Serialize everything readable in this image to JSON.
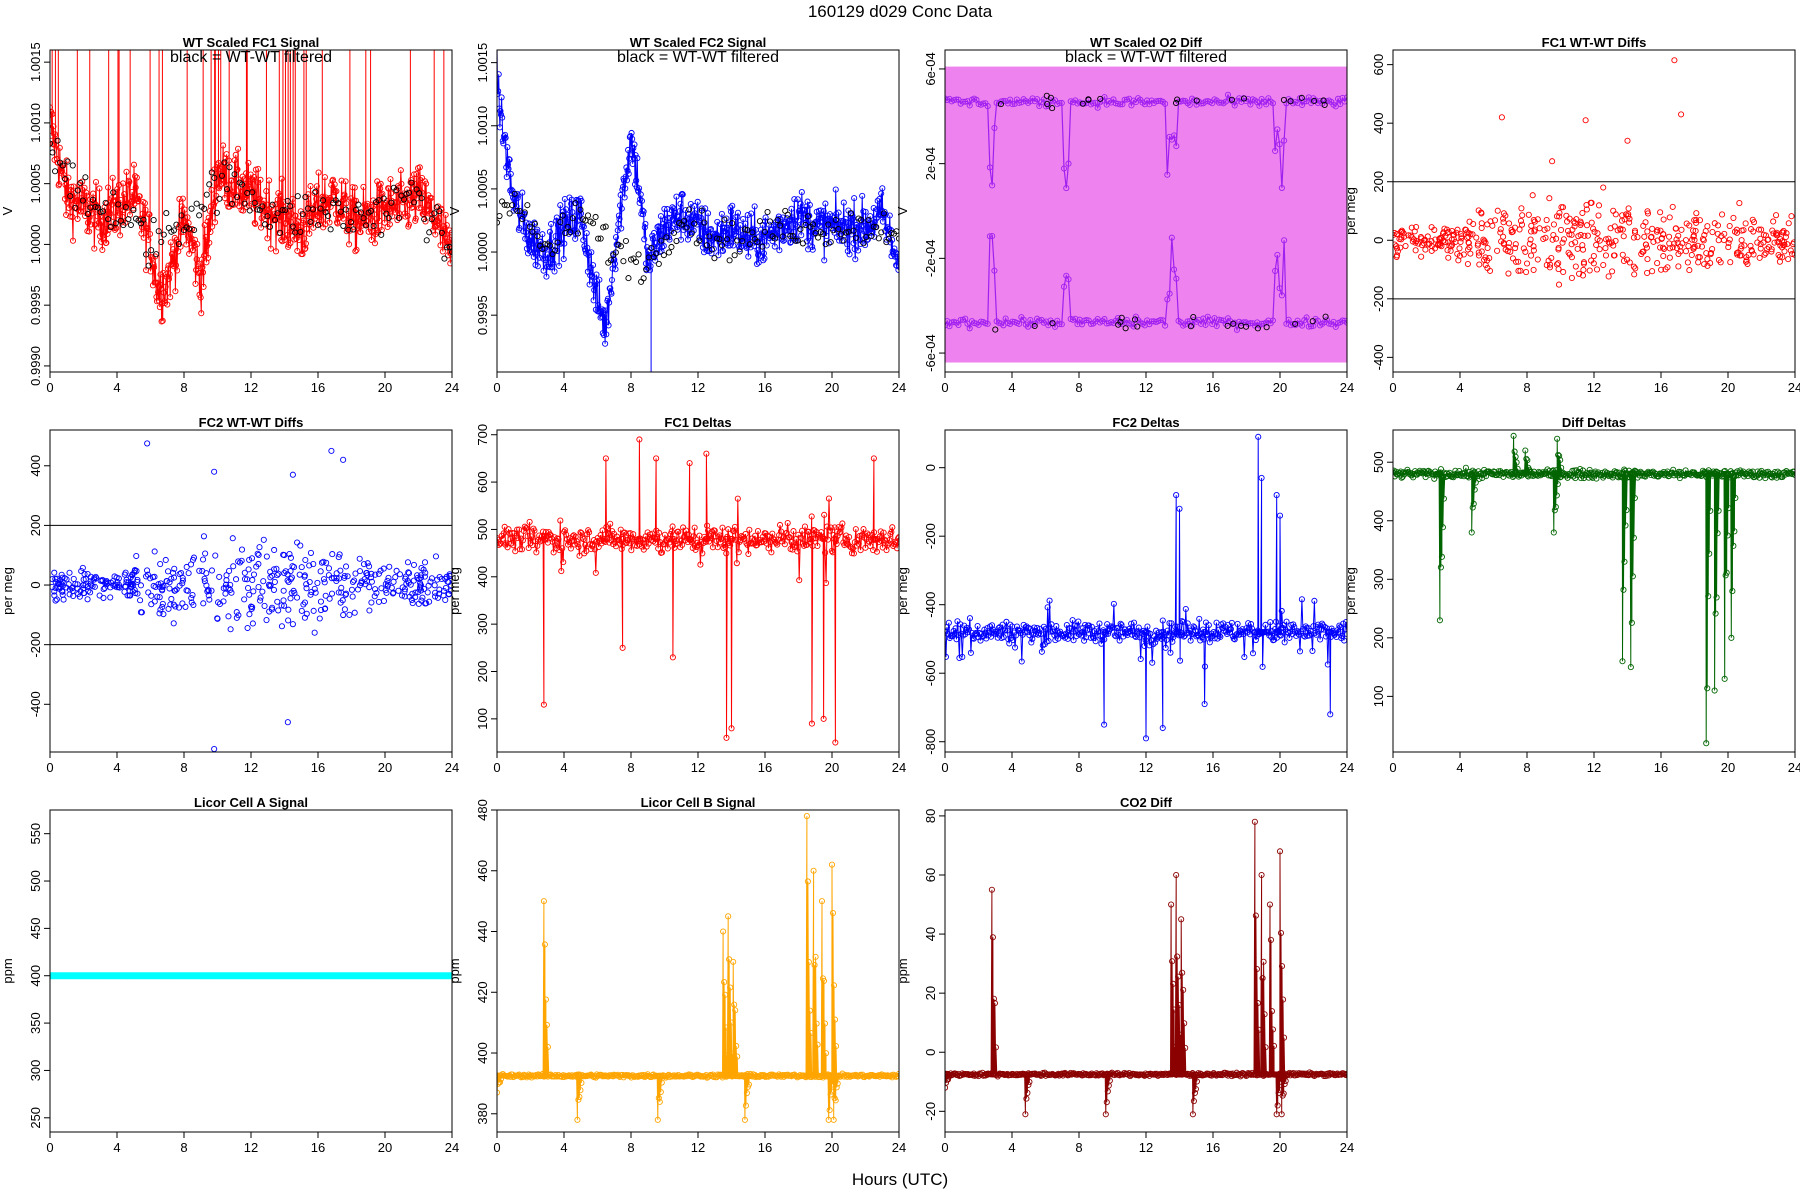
{
  "page": {
    "title": "160129   d029   Conc Data",
    "xlabel": "Hours (UTC)"
  },
  "chart_data": [
    {
      "id": "p1",
      "type": "line",
      "title": "WT Scaled FC1 Signal",
      "annotation": "black = WT-WT filtered",
      "ylabel": "V",
      "xlim": [
        0,
        24
      ],
      "ylim": [
        0.99895,
        1.0016
      ],
      "yticks": [
        0.999,
        0.9995,
        1.0,
        1.0005,
        1.001,
        1.0015
      ],
      "yticklabels": [
        "0.9990",
        "0.9995",
        "1.0000",
        "1.0005",
        "1.0010",
        "1.0015"
      ],
      "xticks": [
        0,
        4,
        8,
        12,
        16,
        20,
        24
      ],
      "series": [
        {
          "style": "line+points",
          "color": "#ff0000",
          "baseline": 1.0003,
          "x": [
            0,
            0.5,
            1,
            2,
            3,
            4,
            5,
            6,
            6.5,
            7,
            8,
            8.5,
            9,
            9.5,
            10,
            11,
            12,
            13,
            14,
            15,
            16,
            17,
            18,
            19,
            20,
            21,
            22,
            23,
            24
          ],
          "y": [
            1.001,
            1.0007,
            1.0004,
            1.0003,
            1.0002,
            1.0003,
            1.0004,
            1.0,
            0.9996,
            0.9997,
            1.0002,
            1.0,
            0.9997,
            1.0001,
            1.0006,
            1.0005,
            1.0004,
            1.0003,
            1.0002,
            1.0001,
            1.0003,
            1.0004,
            1.0002,
            1.0002,
            1.0003,
            1.0003,
            1.0004,
            1.0002,
            0.9999
          ],
          "noise": 0.00025,
          "spikes": true
        },
        {
          "style": "points",
          "color": "#000000",
          "baseline": 1.0003,
          "x": [
            0.5,
            2,
            4,
            6,
            8,
            10,
            12,
            14,
            16,
            18,
            20,
            22,
            23.5
          ],
          "y": [
            1.0008,
            1.0003,
            1.0003,
            1.0,
            1.0002,
            1.0005,
            1.0004,
            1.0002,
            1.0003,
            1.0002,
            1.0003,
            1.0004,
            1.0
          ],
          "noise": 0.0002
        }
      ]
    },
    {
      "id": "p2",
      "type": "line",
      "title": "WT Scaled FC2 Signal",
      "annotation": "black = WT-WT filtered",
      "ylabel": "V",
      "xlim": [
        0,
        24
      ],
      "ylim": [
        0.99905,
        1.0016
      ],
      "yticks": [
        0.9995,
        1.0,
        1.0005,
        1.001,
        1.0015
      ],
      "yticklabels": [
        "0.9995",
        "1.0000",
        "1.0005",
        "1.0010",
        "1.0015"
      ],
      "xticks": [
        0,
        4,
        8,
        12,
        16,
        20,
        24
      ],
      "series": [
        {
          "style": "line+points",
          "color": "#0000ff",
          "baseline": 1.0002,
          "x": [
            0,
            0.3,
            1,
            2,
            3,
            4,
            5,
            6,
            6.5,
            7,
            8,
            8.5,
            9,
            10,
            11,
            12,
            13,
            14,
            15,
            16,
            17,
            18,
            19,
            20,
            21,
            22,
            23,
            24
          ],
          "y": [
            1.0014,
            1.001,
            1.0004,
            1.0001,
            1.0,
            1.0002,
            1.0003,
            0.9996,
            0.9994,
            1.0,
            1.0009,
            1.0005,
            0.9999,
            1.0002,
            1.0003,
            1.0002,
            1.0001,
            1.0002,
            1.0001,
            1.0001,
            1.0002,
            1.0003,
            1.0002,
            1.0002,
            1.0002,
            1.0002,
            1.0003,
            0.9999
          ],
          "noise": 0.0002,
          "spikes": false
        },
        {
          "style": "points",
          "color": "#000000",
          "baseline": 1.0002,
          "x": [
            1,
            3,
            5,
            7,
            9,
            11,
            13,
            15,
            17,
            19,
            21,
            23
          ],
          "y": [
            1.0004,
            1.0,
            1.0003,
            1.0,
            0.9999,
            1.0003,
            1.0001,
            1.0001,
            1.0002,
            1.0002,
            1.0002,
            1.0002
          ],
          "noise": 0.00015
        }
      ]
    },
    {
      "id": "p3",
      "type": "line",
      "title": "WT Scaled O2 Diff",
      "annotation": "black = WT-WT filtered",
      "ylabel": "V",
      "xlim": [
        0,
        24
      ],
      "ylim": [
        -0.00068,
        0.00068
      ],
      "yticks": [
        -0.0006,
        -0.0002,
        0.0002,
        0.0006
      ],
      "yticklabels": [
        "-6e-04",
        "-2e-04",
        "2e-04",
        "6e-04"
      ],
      "xticks": [
        0,
        4,
        8,
        12,
        16,
        20,
        24
      ],
      "band": {
        "color": "#ee82ee",
        "from": -0.00064,
        "to": 0.00061,
        "x": [
          0,
          24
        ]
      },
      "levels": {
        "upper": 0.00046,
        "lower": -0.00047,
        "color": "#a020f0"
      }
    },
    {
      "id": "p4",
      "type": "scatter",
      "title": "FC1 WT-WT Diffs",
      "ylabel": "per meg",
      "xlim": [
        0,
        24
      ],
      "ylim": [
        -450,
        650
      ],
      "yticks": [
        -400,
        -200,
        0,
        200,
        400,
        600
      ],
      "yticklabels": [
        "-400",
        "-200",
        "0",
        "200",
        "400",
        "600"
      ],
      "xticks": [
        0,
        4,
        8,
        12,
        16,
        20,
        24
      ],
      "hlines": [
        200,
        -200
      ],
      "color": "#ff0000",
      "spread": {
        "start": 60,
        "peak": 150,
        "end": 70
      },
      "outliers": {
        "x": [
          6.5,
          11.5,
          16.8,
          17.2,
          9.5,
          14
        ],
        "y": [
          420,
          410,
          615,
          430,
          270,
          340
        ]
      }
    },
    {
      "id": "p5",
      "type": "scatter",
      "title": "FC2 WT-WT Diffs",
      "ylabel": "per meg",
      "xlim": [
        0,
        24
      ],
      "ylim": [
        -560,
        520
      ],
      "yticks": [
        -400,
        -200,
        0,
        200,
        400
      ],
      "yticklabels": [
        "-400",
        "-200",
        "0",
        "200",
        "400"
      ],
      "xticks": [
        0,
        4,
        8,
        12,
        16,
        20,
        24
      ],
      "hlines": [
        200,
        -200
      ],
      "color": "#0000ff",
      "spread": {
        "start": 45,
        "peak": 140,
        "end": 60
      },
      "outliers": {
        "x": [
          5.8,
          9.8,
          14.5,
          16.8,
          17.5,
          9.8,
          14.2
        ],
        "y": [
          475,
          380,
          370,
          450,
          420,
          -550,
          -460
        ]
      }
    },
    {
      "id": "p6",
      "type": "line",
      "title": "FC1 Deltas",
      "ylabel": "per meg",
      "xlim": [
        0,
        24
      ],
      "ylim": [
        30,
        710
      ],
      "yticks": [
        100,
        200,
        300,
        400,
        500,
        600,
        700
      ],
      "yticklabels": [
        "100",
        "200",
        "300",
        "400",
        "500",
        "600",
        "700"
      ],
      "xticks": [
        0,
        4,
        8,
        12,
        16,
        20,
        24
      ],
      "color": "#ff0000",
      "baseline": 480,
      "noise": 28,
      "dips": {
        "x": [
          2.8,
          7.5,
          10.5,
          13.7,
          14,
          18.8,
          19.5,
          20.2
        ],
        "y": [
          130,
          250,
          230,
          60,
          80,
          90,
          100,
          50
        ]
      },
      "peaks": {
        "x": [
          6.5,
          8.5,
          9.5,
          11.5,
          12.5,
          22.5
        ],
        "y": [
          650,
          690,
          650,
          640,
          660,
          650
        ]
      }
    },
    {
      "id": "p7",
      "type": "line",
      "title": "FC2 Deltas",
      "ylabel": "per meg",
      "xlim": [
        0,
        24
      ],
      "ylim": [
        -830,
        110
      ],
      "yticks": [
        -800,
        -600,
        -400,
        -200,
        0
      ],
      "yticklabels": [
        "-800",
        "-600",
        "-400",
        "-200",
        "0"
      ],
      "xticks": [
        0,
        4,
        8,
        12,
        16,
        20,
        24
      ],
      "color": "#0000ff",
      "baseline": -480,
      "noise": 30,
      "dips": {
        "x": [
          9.5,
          12,
          13,
          15.5,
          23
        ],
        "y": [
          -750,
          -790,
          -760,
          -690,
          -720
        ]
      },
      "peaks": {
        "x": [
          13.8,
          14,
          18.7,
          18.9,
          19.8,
          20
        ],
        "y": [
          -80,
          -120,
          90,
          -30,
          -80,
          -140
        ]
      }
    },
    {
      "id": "p8",
      "type": "line",
      "title": "Diff Deltas",
      "ylabel": "per meg",
      "xlim": [
        0,
        24
      ],
      "ylim": [
        5,
        555
      ],
      "yticks": [
        100,
        200,
        300,
        400,
        500
      ],
      "yticklabels": [
        "100",
        "200",
        "300",
        "400",
        "500"
      ],
      "xticks": [
        0,
        4,
        8,
        12,
        16,
        20,
        24
      ],
      "color": "#006400",
      "baseline": 480,
      "noise": 7,
      "dips": {
        "x": [
          2.8,
          4.7,
          9.6,
          13.7,
          14.2,
          18.7,
          19.2,
          19.8,
          20.2
        ],
        "y": [
          230,
          380,
          380,
          160,
          150,
          20,
          110,
          130,
          200
        ]
      },
      "peaks": {
        "x": [
          7.2,
          7.9,
          9.8
        ],
        "y": [
          545,
          520,
          540
        ]
      }
    },
    {
      "id": "p9",
      "type": "line",
      "title": "Licor Cell A Signal",
      "ylabel": "ppm",
      "xlim": [
        0,
        24
      ],
      "ylim": [
        235,
        575
      ],
      "yticks": [
        250,
        300,
        350,
        400,
        450,
        500,
        550
      ],
      "yticklabels": [
        "250",
        "300",
        "350",
        "400",
        "450",
        "500",
        "550"
      ],
      "xticks": [
        0,
        4,
        8,
        12,
        16,
        20,
        24
      ],
      "color": "#00ffff",
      "x": [
        0,
        24
      ],
      "y": [
        400,
        400
      ]
    },
    {
      "id": "p10",
      "type": "line",
      "title": "Licor Cell B Signal",
      "ylabel": "ppm",
      "xlim": [
        0,
        24
      ],
      "ylim": [
        374,
        480
      ],
      "yticks": [
        380,
        400,
        420,
        440,
        460,
        480
      ],
      "yticklabels": [
        "380",
        "400",
        "420",
        "440",
        "460",
        "480"
      ],
      "xticks": [
        0,
        4,
        8,
        12,
        16,
        20,
        24
      ],
      "color": "#ffa500",
      "baseline": 392.5,
      "noise": 0.5,
      "peaks": {
        "x": [
          2.8,
          13.5,
          13.8,
          14.1,
          18.5,
          18.9,
          19.4,
          20
        ],
        "y": [
          450,
          440,
          445,
          430,
          478,
          460,
          450,
          462
        ]
      },
      "dips": {
        "x": [
          0,
          4.8,
          9.6,
          14.8,
          19.8,
          20.1
        ],
        "y": [
          387,
          378,
          378,
          378,
          378,
          378
        ]
      }
    },
    {
      "id": "p11",
      "type": "line",
      "title": "CO2 Diff",
      "ylabel": "ppm",
      "xlim": [
        0,
        24
      ],
      "ylim": [
        -27,
        82
      ],
      "yticks": [
        -20,
        0,
        20,
        40,
        60,
        80
      ],
      "yticklabels": [
        "-20",
        "0",
        "20",
        "40",
        "60",
        "80"
      ],
      "xticks": [
        0,
        4,
        8,
        12,
        16,
        20,
        24
      ],
      "color": "#8b0000",
      "baseline": -7.5,
      "noise": 0.5,
      "peaks": {
        "x": [
          2.8,
          13.5,
          13.8,
          14.1,
          18.5,
          18.9,
          19.4,
          20
        ],
        "y": [
          55,
          50,
          60,
          45,
          78,
          60,
          50,
          68
        ]
      },
      "dips": {
        "x": [
          0,
          4.8,
          9.6,
          14.8,
          19.8,
          20.1
        ],
        "y": [
          -12,
          -21,
          -21,
          -21,
          -21,
          -21
        ]
      }
    }
  ]
}
